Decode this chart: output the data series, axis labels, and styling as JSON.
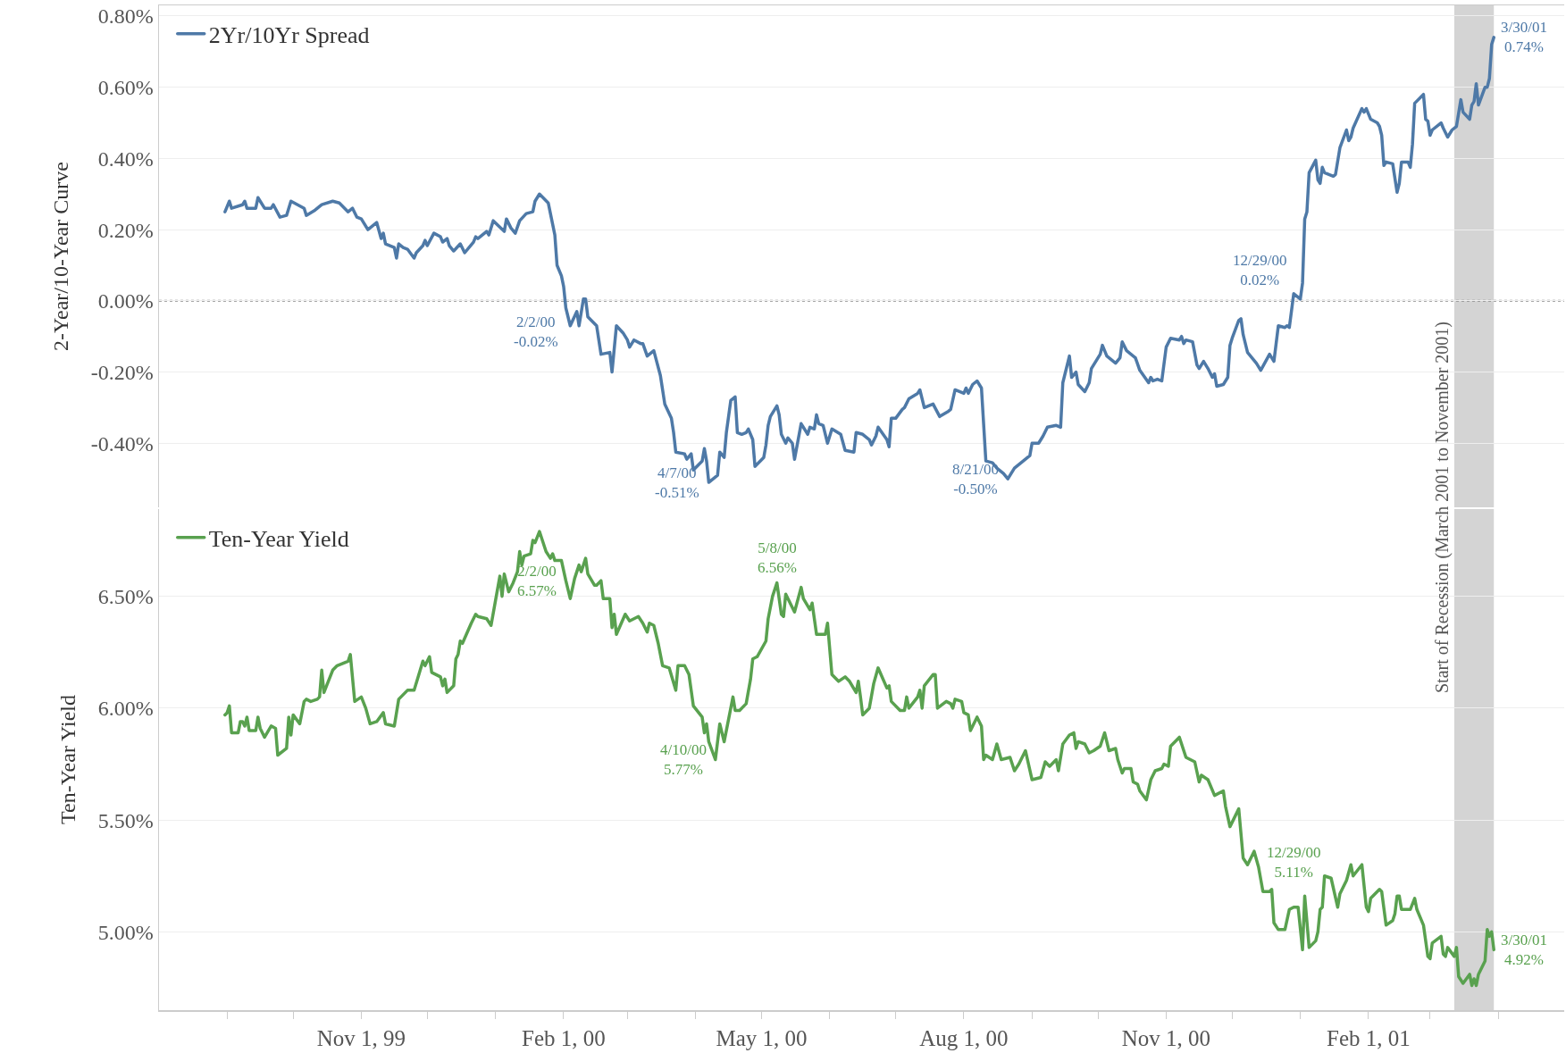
{
  "chart_data": [
    {
      "type": "line",
      "ylabel": "2-Year/10-Year Curve",
      "legend": "top left",
      "grid": "y",
      "tick_labels": "y",
      "xlim": [
        "1999-08-01",
        "2001-05-01"
      ],
      "ylim": [
        -0.58,
        0.83
      ],
      "yticks": [
        {
          "value": -0.4,
          "label": "-0.40%"
        },
        {
          "value": -0.2,
          "label": "-0.20%"
        },
        {
          "value": 0,
          "label": "0.00%"
        },
        {
          "value": 0.2,
          "label": "0.20%"
        },
        {
          "value": 0.4,
          "label": "0.40%"
        },
        {
          "value": 0.6,
          "label": "0.60%"
        },
        {
          "value": 0.8,
          "label": "0.80%"
        }
      ],
      "ref_lines": [
        {
          "axis": "y",
          "value": 0,
          "color": "#8c8c8c",
          "line_style": "dotted"
        }
      ],
      "bands": [
        {
          "axis": "x",
          "from": "2001-03-12",
          "to": "2001-03-30",
          "color": "#d4d4d4",
          "label": "Start of Recession (March 2001 to November 2001)"
        }
      ],
      "annotations": [
        {
          "text": "2/2/00\n-0.02%",
          "x": "2000-02-02",
          "y": -0.02
        },
        {
          "text": "4/7/00\n-0.51%",
          "x": "2000-04-07",
          "y": -0.51
        },
        {
          "text": "8/21/00\n-0.50%",
          "x": "2000-08-21",
          "y": -0.5
        },
        {
          "text": "12/29/00\n0.02%",
          "x": "2000-12-29",
          "y": 0.02
        },
        {
          "text": "3/30/01\n0.74%",
          "x": "2001-03-30",
          "y": 0.74
        }
      ],
      "series": [
        {
          "name": "2Yr/10Yr Spread",
          "color": "#4e79a7",
          "x": [
            "1999-08-31",
            "1999-09-02",
            "1999-09-03",
            "1999-09-08",
            "1999-09-09",
            "1999-09-10",
            "1999-09-14",
            "1999-09-15",
            "1999-09-18",
            "1999-09-21",
            "1999-09-22",
            "1999-09-25",
            "1999-09-28",
            "1999-09-30",
            "1999-10-06",
            "1999-10-07",
            "1999-10-11",
            "1999-10-14",
            "1999-10-19",
            "1999-10-22",
            "1999-10-26",
            "1999-10-28",
            "1999-10-30",
            "1999-11-01",
            "1999-11-04",
            "1999-11-08",
            "1999-11-10",
            "1999-11-11",
            "1999-11-12",
            "1999-11-16",
            "1999-11-17",
            "1999-11-18",
            "1999-11-20",
            "1999-11-22",
            "1999-11-25",
            "1999-11-26",
            "1999-11-29",
            "1999-11-30",
            "1999-12-01",
            "1999-12-04",
            "1999-12-07",
            "1999-12-08",
            "1999-12-10",
            "1999-12-11",
            "1999-12-13",
            "1999-12-16",
            "1999-12-18",
            "1999-12-22",
            "1999-12-23",
            "1999-12-24",
            "1999-12-28",
            "1999-12-29",
            "1999-12-31",
            "2000-01-05",
            "2000-01-06",
            "2000-01-08",
            "2000-01-10",
            "2000-01-12",
            "2000-01-15",
            "2000-01-18",
            "2000-01-19",
            "2000-01-21",
            "2000-01-25",
            "2000-01-28",
            "2000-01-29",
            "2000-01-31",
            "2000-02-01",
            "2000-02-02",
            "2000-02-04",
            "2000-02-07",
            "2000-02-08",
            "2000-02-10",
            "2000-02-11",
            "2000-02-12",
            "2000-02-16",
            "2000-02-18",
            "2000-02-22",
            "2000-02-23",
            "2000-02-25",
            "2000-02-28",
            "2000-03-01",
            "2000-03-02",
            "2000-03-04",
            "2000-03-07",
            "2000-03-08",
            "2000-03-10",
            "2000-03-13",
            "2000-03-16",
            "2000-03-18",
            "2000-03-21",
            "2000-03-22",
            "2000-03-23",
            "2000-03-27",
            "2000-03-28",
            "2000-03-30",
            "2000-03-31",
            "2000-04-04",
            "2000-04-05",
            "2000-04-06",
            "2000-04-07",
            "2000-04-11",
            "2000-04-12",
            "2000-04-14",
            "2000-04-15",
            "2000-04-17",
            "2000-04-19",
            "2000-04-20",
            "2000-04-22",
            "2000-04-24",
            "2000-04-25",
            "2000-04-27",
            "2000-04-28",
            "2000-05-02",
            "2000-05-03",
            "2000-05-04",
            "2000-05-05",
            "2000-05-08",
            "2000-05-09",
            "2000-05-10",
            "2000-05-12",
            "2000-05-13",
            "2000-05-15",
            "2000-05-16",
            "2000-05-19",
            "2000-05-22",
            "2000-05-23",
            "2000-05-25",
            "2000-05-26",
            "2000-05-27",
            "2000-05-29",
            "2000-05-31",
            "2000-06-02",
            "2000-06-06",
            "2000-06-08",
            "2000-06-12",
            "2000-06-13",
            "2000-06-16",
            "2000-06-19",
            "2000-06-20",
            "2000-06-22",
            "2000-06-23",
            "2000-06-27",
            "2000-06-28",
            "2000-06-29",
            "2000-07-01",
            "2000-07-04",
            "2000-07-05",
            "2000-07-07",
            "2000-07-11",
            "2000-07-12",
            "2000-07-14",
            "2000-07-18",
            "2000-07-21",
            "2000-07-25",
            "2000-07-26",
            "2000-07-28",
            "2000-08-01",
            "2000-08-02",
            "2000-08-03",
            "2000-08-05",
            "2000-08-07",
            "2000-08-09",
            "2000-08-11",
            "2000-08-14",
            "2000-08-16",
            "2000-08-17",
            "2000-08-19",
            "2000-08-21",
            "2000-08-24",
            "2000-08-27",
            "2000-08-29",
            "2000-08-31",
            "2000-09-01",
            "2000-09-04",
            "2000-09-06",
            "2000-09-08",
            "2000-09-12",
            "2000-09-14",
            "2000-09-15",
            "2000-09-18",
            "2000-09-19",
            "2000-09-21",
            "2000-09-22",
            "2000-09-25",
            "2000-09-27",
            "2000-09-28",
            "2000-10-02",
            "2000-10-03",
            "2000-10-05",
            "2000-10-09",
            "2000-10-11",
            "2000-10-12",
            "2000-10-14",
            "2000-10-18",
            "2000-10-20",
            "2000-10-24",
            "2000-10-25",
            "2000-10-26",
            "2000-10-28",
            "2000-10-30",
            "2000-11-01",
            "2000-11-03",
            "2000-11-07",
            "2000-11-08",
            "2000-11-09",
            "2000-11-10",
            "2000-11-13",
            "2000-11-15",
            "2000-11-16",
            "2000-11-18",
            "2000-11-20",
            "2000-11-22",
            "2000-11-23",
            "2000-11-24",
            "2000-11-27",
            "2000-11-29",
            "2000-11-30",
            "2000-12-01",
            "2000-12-04",
            "2000-12-05",
            "2000-12-06",
            "2000-12-08",
            "2000-12-12",
            "2000-12-14",
            "2000-12-18",
            "2000-12-20",
            "2000-12-22",
            "2000-12-25",
            "2000-12-26",
            "2000-12-27",
            "2000-12-29",
            "2000-12-31",
            "2001-01-01",
            "2001-01-02",
            "2001-01-03",
            "2001-01-04",
            "2001-01-05",
            "2001-01-08",
            "2001-01-09",
            "2001-01-10",
            "2001-01-11",
            "2001-01-12",
            "2001-01-16",
            "2001-01-17",
            "2001-01-19",
            "2001-01-22",
            "2001-01-23",
            "2001-01-24",
            "2001-01-25",
            "2001-01-29",
            "2001-01-30",
            "2001-01-31",
            "2001-02-02",
            "2001-02-05",
            "2001-02-06",
            "2001-02-07",
            "2001-02-08",
            "2001-02-09",
            "2001-02-12",
            "2001-02-14",
            "2001-02-15",
            "2001-02-16",
            "2001-02-19",
            "2001-02-20",
            "2001-02-21",
            "2001-02-22",
            "2001-02-26",
            "2001-02-27",
            "2001-02-28",
            "2001-03-01",
            "2001-03-02",
            "2001-03-06",
            "2001-03-07",
            "2001-03-09",
            "2001-03-11",
            "2001-03-13",
            "2001-03-15",
            "2001-03-16",
            "2001-03-19",
            "2001-03-20",
            "2001-03-21",
            "2001-03-22",
            "2001-03-23",
            "2001-03-26",
            "2001-03-27",
            "2001-03-28",
            "2001-03-29",
            "2001-03-30"
          ],
          "values": [
            0.25,
            0.28,
            0.26,
            0.27,
            0.28,
            0.26,
            0.26,
            0.29,
            0.26,
            0.26,
            0.27,
            0.235,
            0.24,
            0.28,
            0.26,
            0.24,
            0.255,
            0.27,
            0.28,
            0.275,
            0.25,
            0.26,
            0.235,
            0.23,
            0.2,
            0.22,
            0.175,
            0.19,
            0.16,
            0.15,
            0.12,
            0.16,
            0.15,
            0.145,
            0.12,
            0.135,
            0.155,
            0.17,
            0.155,
            0.19,
            0.18,
            0.165,
            0.175,
            0.155,
            0.14,
            0.16,
            0.135,
            0.165,
            0.18,
            0.175,
            0.195,
            0.185,
            0.225,
            0.195,
            0.23,
            0.205,
            0.19,
            0.225,
            0.245,
            0.25,
            0.28,
            0.3,
            0.275,
            0.185,
            0.1,
            0.07,
            0.04,
            -0.02,
            -0.07,
            -0.03,
            -0.07,
            0.005,
            0.005,
            -0.045,
            -0.07,
            -0.15,
            -0.145,
            -0.2,
            -0.07,
            -0.09,
            -0.11,
            -0.13,
            -0.11,
            -0.12,
            -0.12,
            -0.155,
            -0.14,
            -0.21,
            -0.29,
            -0.33,
            -0.37,
            -0.425,
            -0.43,
            -0.445,
            -0.43,
            -0.475,
            -0.45,
            -0.415,
            -0.45,
            -0.51,
            -0.49,
            -0.425,
            -0.44,
            -0.37,
            -0.28,
            -0.27,
            -0.37,
            -0.375,
            -0.37,
            -0.36,
            -0.39,
            -0.465,
            -0.44,
            -0.405,
            -0.35,
            -0.325,
            -0.295,
            -0.32,
            -0.375,
            -0.4,
            -0.385,
            -0.4,
            -0.445,
            -0.345,
            -0.375,
            -0.355,
            -0.36,
            -0.32,
            -0.345,
            -0.35,
            -0.4,
            -0.36,
            -0.375,
            -0.42,
            -0.425,
            -0.37,
            -0.375,
            -0.39,
            -0.405,
            -0.38,
            -0.355,
            -0.39,
            -0.41,
            -0.33,
            -0.33,
            -0.305,
            -0.3,
            -0.275,
            -0.26,
            -0.25,
            -0.3,
            -0.29,
            -0.325,
            -0.31,
            -0.305,
            -0.25,
            -0.26,
            -0.245,
            -0.26,
            -0.235,
            -0.225,
            -0.245,
            -0.45,
            -0.455,
            -0.47,
            -0.475,
            -0.485,
            -0.5,
            -0.47,
            -0.455,
            -0.445,
            -0.435,
            -0.4,
            -0.4,
            -0.38,
            -0.355,
            -0.35,
            -0.355,
            -0.23,
            -0.155,
            -0.215,
            -0.2,
            -0.235,
            -0.255,
            -0.23,
            -0.19,
            -0.15,
            -0.125,
            -0.155,
            -0.175,
            -0.16,
            -0.115,
            -0.14,
            -0.16,
            -0.195,
            -0.23,
            -0.215,
            -0.225,
            -0.22,
            -0.225,
            -0.13,
            -0.105,
            -0.11,
            -0.1,
            -0.12,
            -0.11,
            -0.115,
            -0.18,
            -0.19,
            -0.17,
            -0.19,
            -0.215,
            -0.205,
            -0.24,
            -0.235,
            -0.215,
            -0.125,
            -0.105,
            -0.055,
            -0.05,
            -0.095,
            -0.145,
            -0.175,
            -0.195,
            -0.15,
            -0.17,
            -0.07,
            -0.075,
            -0.07,
            -0.075,
            0.02,
            0.01,
            0.005,
            0.05,
            0.23,
            0.25,
            0.36,
            0.395,
            0.34,
            0.33,
            0.375,
            0.36,
            0.35,
            0.355,
            0.43,
            0.48,
            0.45,
            0.46,
            0.485,
            0.54,
            0.53,
            0.54,
            0.51,
            0.5,
            0.49,
            0.465,
            0.38,
            0.39,
            0.385,
            0.305,
            0.33,
            0.39,
            0.39,
            0.375,
            0.44,
            0.555,
            0.58,
            0.51,
            0.505,
            0.465,
            0.48,
            0.5,
            0.485,
            0.46,
            0.48,
            0.49,
            0.565,
            0.53,
            0.51,
            0.55,
            0.56,
            0.61,
            0.55,
            0.6,
            0.6,
            0.625,
            0.72,
            0.74
          ]
        }
      ]
    },
    {
      "type": "line",
      "ylabel": "Ten-Year Yield",
      "legend": "top left",
      "grid": "y",
      "xlim": [
        "1999-08-01",
        "2001-05-01"
      ],
      "xticks": [
        {
          "value": "1999-09-01",
          "label": null
        },
        {
          "value": "1999-10-01",
          "label": null
        },
        {
          "value": "1999-11-01",
          "label": "Nov 1, 99"
        },
        {
          "value": "1999-12-01",
          "label": null
        },
        {
          "value": "2000-01-01",
          "label": null
        },
        {
          "value": "2000-02-01",
          "label": "Feb 1, 00"
        },
        {
          "value": "2000-03-01",
          "label": null
        },
        {
          "value": "2000-04-01",
          "label": null
        },
        {
          "value": "2000-05-01",
          "label": "May 1, 00"
        },
        {
          "value": "2000-06-01",
          "label": null
        },
        {
          "value": "2000-07-01",
          "label": null
        },
        {
          "value": "2000-08-01",
          "label": "Aug 1, 00"
        },
        {
          "value": "2000-09-01",
          "label": null
        },
        {
          "value": "2000-10-01",
          "label": null
        },
        {
          "value": "2000-11-01",
          "label": "Nov 1, 00"
        },
        {
          "value": "2000-12-01",
          "label": null
        },
        {
          "value": "2001-01-01",
          "label": null
        },
        {
          "value": "2001-02-01",
          "label": "Feb 1, 01"
        },
        {
          "value": "2001-03-01",
          "label": null
        },
        {
          "value": "2001-04-01",
          "label": null
        }
      ],
      "ylim": [
        4.65,
        6.89
      ],
      "yticks": [
        {
          "value": 5,
          "label": "5.00%"
        },
        {
          "value": 5.5,
          "label": "5.50%"
        },
        {
          "value": 6,
          "label": "6.00%"
        },
        {
          "value": 6.5,
          "label": "6.50%"
        }
      ],
      "bands": [
        {
          "axis": "x",
          "from": "2001-03-12",
          "to": "2001-03-30",
          "color": "#d4d4d4"
        }
      ],
      "annotations": [
        {
          "text": "2/2/00\n6.57%",
          "x": "2000-02-02",
          "y": 6.57
        },
        {
          "text": "4/10/00\n5.77%",
          "x": "2000-04-10",
          "y": 5.77
        },
        {
          "text": "5/8/00\n6.56%",
          "x": "2000-05-08",
          "y": 6.56
        },
        {
          "text": "12/29/00\n5.11%",
          "x": "2000-12-29",
          "y": 5.11
        },
        {
          "text": "3/30/01\n4.92%",
          "x": "2001-03-30",
          "y": 4.92
        }
      ],
      "series": [
        {
          "name": "Ten-Year Yield",
          "color": "#59a14f",
          "x": [
            "1999-08-31",
            "1999-09-01",
            "1999-09-02",
            "1999-09-03",
            "1999-09-06",
            "1999-09-07",
            "1999-09-08",
            "1999-09-09",
            "1999-09-10",
            "1999-09-11",
            "1999-09-14",
            "1999-09-15",
            "1999-09-16",
            "1999-09-18",
            "1999-09-21",
            "1999-09-23",
            "1999-09-24",
            "1999-09-28",
            "1999-09-29",
            "1999-09-30",
            "1999-10-01",
            "1999-10-04",
            "1999-10-06",
            "1999-10-07",
            "1999-10-09",
            "1999-10-12",
            "1999-10-13",
            "1999-10-14",
            "1999-10-15",
            "1999-10-19",
            "1999-10-20",
            "1999-10-21",
            "1999-10-26",
            "1999-10-27",
            "1999-10-29",
            "1999-11-01",
            "1999-11-03",
            "1999-11-05",
            "1999-11-08",
            "1999-11-11",
            "1999-11-12",
            "1999-11-16",
            "1999-11-18",
            "1999-11-22",
            "1999-11-25",
            "1999-11-29",
            "1999-11-30",
            "1999-12-02",
            "1999-12-03",
            "1999-12-07",
            "1999-12-08",
            "1999-12-09",
            "1999-12-10",
            "1999-12-13",
            "1999-12-14",
            "1999-12-15",
            "1999-12-16",
            "1999-12-17",
            "1999-12-21",
            "1999-12-23",
            "1999-12-24",
            "1999-12-28",
            "1999-12-30",
            "2000-01-01",
            "2000-01-03",
            "2000-01-04",
            "2000-01-05",
            "2000-01-07",
            "2000-01-09",
            "2000-01-11",
            "2000-01-12",
            "2000-01-13",
            "2000-01-14",
            "2000-01-17",
            "2000-01-18",
            "2000-01-19",
            "2000-01-21",
            "2000-01-24",
            "2000-01-26",
            "2000-01-27",
            "2000-01-28",
            "2000-01-31",
            "2000-02-02",
            "2000-02-04",
            "2000-02-06",
            "2000-02-08",
            "2000-02-09",
            "2000-02-11",
            "2000-02-12",
            "2000-02-15",
            "2000-02-16",
            "2000-02-18",
            "2000-02-19",
            "2000-02-22",
            "2000-02-23",
            "2000-02-24",
            "2000-02-25",
            "2000-02-29",
            "2000-03-02",
            "2000-03-06",
            "2000-03-08",
            "2000-03-10",
            "2000-03-11",
            "2000-03-13",
            "2000-03-15",
            "2000-03-17",
            "2000-03-20",
            "2000-03-23",
            "2000-03-24",
            "2000-03-27",
            "2000-03-29",
            "2000-03-31",
            "2000-04-04",
            "2000-04-05",
            "2000-04-06",
            "2000-04-07",
            "2000-04-10",
            "2000-04-12",
            "2000-04-14",
            "2000-04-18",
            "2000-04-19",
            "2000-04-21",
            "2000-04-24",
            "2000-04-26",
            "2000-04-27",
            "2000-04-29",
            "2000-05-03",
            "2000-05-04",
            "2000-05-06",
            "2000-05-08",
            "2000-05-10",
            "2000-05-11",
            "2000-05-12",
            "2000-05-16",
            "2000-05-19",
            "2000-05-20",
            "2000-05-23",
            "2000-05-24",
            "2000-05-26",
            "2000-05-30",
            "2000-05-31",
            "2000-06-02",
            "2000-06-05",
            "2000-06-08",
            "2000-06-10",
            "2000-06-13",
            "2000-06-14",
            "2000-06-15",
            "2000-06-16",
            "2000-06-19",
            "2000-06-21",
            "2000-06-23",
            "2000-06-27",
            "2000-06-28",
            "2000-06-29",
            "2000-07-03",
            "2000-07-05",
            "2000-07-06",
            "2000-07-07",
            "2000-07-11",
            "2000-07-12",
            "2000-07-13",
            "2000-07-14",
            "2000-07-18",
            "2000-07-19",
            "2000-07-20",
            "2000-07-24",
            "2000-07-26",
            "2000-07-27",
            "2000-07-28",
            "2000-07-31",
            "2000-08-01",
            "2000-08-03",
            "2000-08-04",
            "2000-08-07",
            "2000-08-09",
            "2000-08-10",
            "2000-08-11",
            "2000-08-14",
            "2000-08-16",
            "2000-08-18",
            "2000-08-22",
            "2000-08-24",
            "2000-08-26",
            "2000-08-29",
            "2000-09-01",
            "2000-09-05",
            "2000-09-07",
            "2000-09-09",
            "2000-09-12",
            "2000-09-13",
            "2000-09-15",
            "2000-09-18",
            "2000-09-20",
            "2000-09-21",
            "2000-09-22",
            "2000-09-25",
            "2000-09-27",
            "2000-09-29",
            "2000-10-02",
            "2000-10-04",
            "2000-10-06",
            "2000-10-09",
            "2000-10-10",
            "2000-10-12",
            "2000-10-13",
            "2000-10-16",
            "2000-10-17",
            "2000-10-19",
            "2000-10-20",
            "2000-10-23",
            "2000-10-25",
            "2000-10-27",
            "2000-10-30",
            "2000-10-31",
            "2000-11-02",
            "2000-11-03",
            "2000-11-07",
            "2000-11-10",
            "2000-11-14",
            "2000-11-16",
            "2000-11-17",
            "2000-11-20",
            "2000-11-23",
            "2000-11-27",
            "2000-11-28",
            "2000-11-30",
            "2000-12-02",
            "2000-12-04",
            "2000-12-06",
            "2000-12-08",
            "2000-12-11",
            "2000-12-13",
            "2000-12-15",
            "2000-12-18",
            "2000-12-19",
            "2000-12-20",
            "2000-12-22",
            "2000-12-25",
            "2000-12-27",
            "2000-12-29",
            "2000-12-31",
            "2001-01-02",
            "2001-01-03",
            "2001-01-05",
            "2001-01-08",
            "2001-01-09",
            "2001-01-10",
            "2001-01-11",
            "2001-01-12",
            "2001-01-15",
            "2001-01-18",
            "2001-01-19",
            "2001-01-22",
            "2001-01-24",
            "2001-01-25",
            "2001-01-29",
            "2001-01-31",
            "2001-02-01",
            "2001-02-02",
            "2001-02-06",
            "2001-02-07",
            "2001-02-09",
            "2001-02-12",
            "2001-02-13",
            "2001-02-14",
            "2001-02-15",
            "2001-02-16",
            "2001-02-20",
            "2001-02-22",
            "2001-02-23",
            "2001-02-26",
            "2001-02-28",
            "2001-03-01",
            "2001-03-02",
            "2001-03-06",
            "2001-03-07",
            "2001-03-08",
            "2001-03-09",
            "2001-03-12",
            "2001-03-13",
            "2001-03-14",
            "2001-03-16",
            "2001-03-19",
            "2001-03-20",
            "2001-03-21",
            "2001-03-22",
            "2001-03-23",
            "2001-03-26",
            "2001-03-27",
            "2001-03-28",
            "2001-03-29",
            "2001-03-30"
          ],
          "values": [
            5.97,
            5.98,
            6.01,
            5.89,
            5.89,
            5.94,
            5.94,
            5.92,
            5.96,
            5.9,
            5.9,
            5.96,
            5.91,
            5.87,
            5.92,
            5.91,
            5.79,
            5.82,
            5.96,
            5.88,
            5.97,
            5.93,
            6.03,
            6.04,
            6.03,
            6.04,
            6.05,
            6.17,
            6.07,
            6.17,
            6.18,
            6.19,
            6.21,
            6.24,
            6.03,
            6.05,
            6.0,
            5.93,
            5.94,
            5.98,
            5.93,
            5.92,
            6.04,
            6.08,
            6.08,
            6.21,
            6.19,
            6.23,
            6.16,
            6.14,
            6.1,
            6.13,
            6.07,
            6.1,
            6.22,
            6.24,
            6.3,
            6.29,
            6.38,
            6.42,
            6.41,
            6.4,
            6.37,
            6.48,
            6.59,
            6.5,
            6.6,
            6.52,
            6.56,
            6.61,
            6.7,
            6.64,
            6.68,
            6.69,
            6.75,
            6.74,
            6.79,
            6.7,
            6.67,
            6.69,
            6.66,
            6.66,
            6.57,
            6.49,
            6.58,
            6.64,
            6.61,
            6.67,
            6.6,
            6.55,
            6.55,
            6.57,
            6.49,
            6.49,
            6.36,
            6.42,
            6.33,
            6.42,
            6.39,
            6.41,
            6.38,
            6.34,
            6.38,
            6.37,
            6.29,
            6.19,
            6.18,
            6.08,
            6.19,
            6.19,
            6.15,
            6.01,
            5.96,
            5.89,
            5.93,
            5.85,
            5.77,
            5.93,
            5.85,
            6.05,
            5.99,
            5.99,
            6.02,
            6.13,
            6.22,
            6.23,
            6.3,
            6.4,
            6.5,
            6.56,
            6.42,
            6.41,
            6.51,
            6.43,
            6.54,
            6.49,
            6.44,
            6.47,
            6.33,
            6.33,
            6.38,
            6.15,
            6.12,
            6.14,
            6.12,
            6.07,
            6.12,
            6.05,
            5.97,
            6.0,
            6.11,
            6.18,
            6.09,
            6.1,
            6.03,
            5.99,
            5.99,
            6.05,
            6.0,
            6.05,
            6.08,
            6.0,
            6.1,
            6.15,
            6.15,
            6.0,
            6.03,
            6.02,
            6.0,
            6.04,
            6.03,
            5.98,
            5.97,
            5.9,
            5.96,
            5.92,
            5.77,
            5.79,
            5.77,
            5.84,
            5.77,
            5.78,
            5.72,
            5.75,
            5.81,
            5.68,
            5.69,
            5.76,
            5.74,
            5.77,
            5.72,
            5.84,
            5.88,
            5.89,
            5.82,
            5.85,
            5.84,
            5.8,
            5.81,
            5.83,
            5.89,
            5.81,
            5.82,
            5.77,
            5.71,
            5.73,
            5.73,
            5.67,
            5.66,
            5.63,
            5.59,
            5.68,
            5.72,
            5.73,
            5.75,
            5.74,
            5.83,
            5.87,
            5.78,
            5.76,
            5.67,
            5.7,
            5.68,
            5.61,
            5.63,
            5.56,
            5.47,
            5.51,
            5.55,
            5.33,
            5.3,
            5.36,
            5.29,
            5.18,
            5.18,
            5.19,
            5.04,
            5.01,
            5.01,
            5.1,
            5.11,
            5.11,
            4.92,
            5.16,
            4.93,
            4.96,
            5.0,
            5.1,
            5.11,
            5.25,
            5.24,
            5.11,
            5.17,
            5.23,
            5.3,
            5.25,
            5.3,
            5.11,
            5.09,
            5.15,
            5.19,
            5.18,
            5.03,
            5.05,
            5.08,
            5.16,
            5.16,
            5.1,
            5.1,
            5.15,
            5.1,
            5.03,
            4.89,
            4.88,
            4.95,
            4.98,
            4.9,
            4.89,
            4.93,
            4.89,
            4.93,
            4.8,
            4.77,
            4.81,
            4.76,
            4.79,
            4.76,
            4.81,
            4.87,
            5.01,
            4.98,
            5.0,
            4.92
          ]
        }
      ]
    }
  ]
}
